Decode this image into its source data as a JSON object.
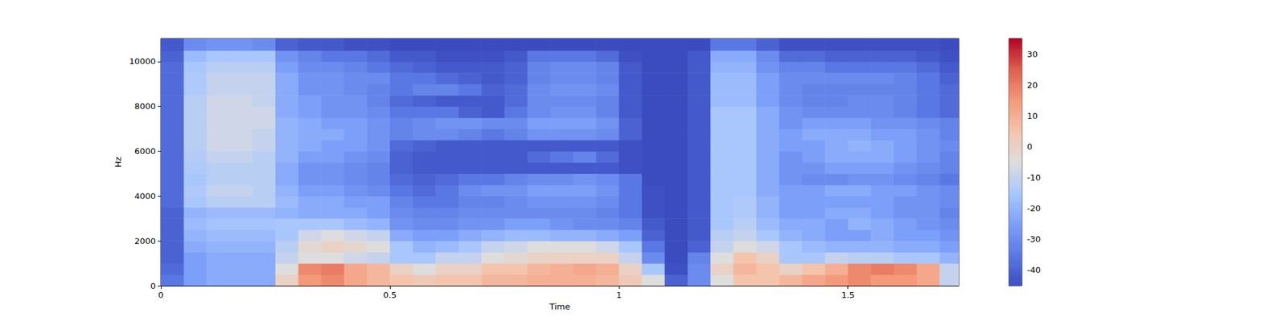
{
  "chart_data": {
    "type": "heatmap",
    "x_label": "Time",
    "y_label": "Hz",
    "xlim": [
      0,
      1.742
    ],
    "xticks": [
      0,
      0.5,
      1,
      1.5
    ],
    "ylim": [
      0,
      11025
    ],
    "yticks": [
      0,
      2000,
      4000,
      6000,
      8000,
      10000
    ],
    "x": [
      0,
      0.05,
      0.1,
      0.15,
      0.2,
      0.25,
      0.3,
      0.35,
      0.4,
      0.45,
      0.5,
      0.55,
      0.6,
      0.65,
      0.7,
      0.75,
      0.8,
      0.85,
      0.9,
      0.95,
      1.0,
      1.05,
      1.1,
      1.15,
      1.2,
      1.25,
      1.3,
      1.35,
      1.4,
      1.45,
      1.5,
      1.55,
      1.6,
      1.65,
      1.7
    ],
    "y": [
      0,
      500,
      1000,
      1500,
      2000,
      2500,
      3000,
      3500,
      4000,
      4500,
      5000,
      5500,
      6000,
      6500,
      7000,
      7500,
      8000,
      8500,
      9000,
      9500,
      10000,
      10500
    ],
    "values": [
      [
        -35,
        -25,
        -22,
        -22,
        -22,
        0,
        15,
        18,
        12,
        8,
        5,
        3,
        5,
        5,
        8,
        8,
        10,
        10,
        10,
        8,
        3,
        -5,
        -40,
        -30,
        -5,
        5,
        5,
        8,
        12,
        15,
        18,
        15,
        15,
        12,
        -10
      ],
      [
        -38,
        -25,
        -22,
        -22,
        -22,
        -5,
        18,
        20,
        12,
        8,
        0,
        -5,
        0,
        0,
        5,
        5,
        8,
        10,
        12,
        10,
        0,
        -15,
        -44,
        -30,
        0,
        8,
        5,
        0,
        5,
        10,
        18,
        20,
        18,
        12,
        -10
      ],
      [
        -40,
        -25,
        -22,
        -22,
        -22,
        -10,
        -5,
        -5,
        -8,
        -10,
        -15,
        -15,
        -10,
        -10,
        -5,
        -3,
        0,
        0,
        0,
        0,
        -10,
        -30,
        -45,
        -32,
        -5,
        5,
        0,
        -15,
        -15,
        -10,
        -12,
        -12,
        -15,
        -15,
        -20
      ],
      [
        -40,
        -22,
        -20,
        -20,
        -20,
        -12,
        -3,
        0,
        -2,
        -5,
        -15,
        -20,
        -18,
        -15,
        -10,
        -8,
        -5,
        -5,
        -5,
        -8,
        -15,
        -35,
        -45,
        -40,
        -10,
        -5,
        -8,
        -15,
        -18,
        -20,
        -20,
        -20,
        -22,
        -22,
        -25
      ],
      [
        -40,
        -20,
        -18,
        -18,
        -18,
        -15,
        -8,
        -5,
        -8,
        -10,
        -22,
        -25,
        -25,
        -22,
        -20,
        -18,
        -18,
        -20,
        -20,
        -22,
        -25,
        -40,
        -45,
        -42,
        -12,
        -10,
        -15,
        -20,
        -22,
        -25,
        -25,
        -22,
        -25,
        -25,
        -28
      ],
      [
        -40,
        -18,
        -16,
        -16,
        -16,
        -15,
        -15,
        -15,
        -18,
        -20,
        -28,
        -30,
        -30,
        -28,
        -28,
        -25,
        -25,
        -28,
        -30,
        -30,
        -32,
        -42,
        -45,
        -42,
        -15,
        -12,
        -18,
        -22,
        -22,
        -25,
        -20,
        -22,
        -25,
        -28,
        -30
      ],
      [
        -40,
        -20,
        -18,
        -18,
        -18,
        -20,
        -22,
        -22,
        -22,
        -25,
        -30,
        -32,
        -32,
        -30,
        -30,
        -30,
        -30,
        -30,
        -30,
        -32,
        -35,
        -44,
        -45,
        -42,
        -15,
        -14,
        -20,
        -25,
        -25,
        -22,
        -22,
        -25,
        -28,
        -28,
        -32
      ],
      [
        -38,
        -15,
        -12,
        -12,
        -12,
        -18,
        -22,
        -22,
        -25,
        -25,
        -32,
        -35,
        -35,
        -32,
        -32,
        -30,
        -28,
        -28,
        -28,
        -30,
        -35,
        -44,
        -45,
        -42,
        -15,
        -14,
        -20,
        -25,
        -25,
        -25,
        -25,
        -25,
        -28,
        -28,
        -30
      ],
      [
        -38,
        -14,
        -10,
        -10,
        -12,
        -20,
        -25,
        -25,
        -28,
        -30,
        -35,
        -38,
        -35,
        -30,
        -28,
        -28,
        -25,
        -25,
        -25,
        -28,
        -35,
        -44,
        -45,
        -42,
        -15,
        -15,
        -22,
        -25,
        -25,
        -22,
        -22,
        -25,
        -25,
        -28,
        -30
      ],
      [
        -38,
        -15,
        -12,
        -12,
        -12,
        -22,
        -28,
        -28,
        -30,
        -32,
        -38,
        -40,
        -38,
        -35,
        -35,
        -32,
        -30,
        -30,
        -28,
        -30,
        -35,
        -45,
        -45,
        -42,
        -15,
        -15,
        -22,
        -28,
        -30,
        -30,
        -28,
        -28,
        -30,
        -32,
        -35
      ],
      [
        -38,
        -14,
        -12,
        -12,
        -12,
        -22,
        -28,
        -28,
        -30,
        -32,
        -40,
        -42,
        -42,
        -42,
        -42,
        -42,
        -42,
        -42,
        -42,
        -42,
        -44,
        -45,
        -45,
        -42,
        -15,
        -15,
        -22,
        -28,
        -28,
        -25,
        -25,
        -25,
        -28,
        -30,
        -32
      ],
      [
        -38,
        -13,
        -10,
        -10,
        -12,
        -20,
        -25,
        -25,
        -28,
        -30,
        -40,
        -42,
        -42,
        -42,
        -42,
        -42,
        -38,
        -35,
        -32,
        -38,
        -44,
        -45,
        -45,
        -42,
        -15,
        -15,
        -22,
        -28,
        -25,
        -22,
        -22,
        -22,
        -25,
        -28,
        -32
      ],
      [
        -38,
        -12,
        -8,
        -8,
        -10,
        -20,
        -22,
        -25,
        -25,
        -28,
        -38,
        -40,
        -42,
        -42,
        -42,
        -42,
        -42,
        -42,
        -42,
        -42,
        -44,
        -45,
        -45,
        -42,
        -15,
        -15,
        -22,
        -25,
        -25,
        -22,
        -20,
        -22,
        -25,
        -28,
        -30
      ],
      [
        -38,
        -12,
        -8,
        -8,
        -10,
        -20,
        -22,
        -22,
        -25,
        -28,
        -32,
        -30,
        -30,
        -32,
        -35,
        -32,
        -28,
        -28,
        -28,
        -30,
        -40,
        -45,
        -45,
        -42,
        -15,
        -15,
        -22,
        -25,
        -22,
        -22,
        -22,
        -25,
        -25,
        -28,
        -32
      ],
      [
        -38,
        -12,
        -8,
        -8,
        -8,
        -20,
        -22,
        -25,
        -25,
        -28,
        -32,
        -30,
        -28,
        -28,
        -30,
        -30,
        -25,
        -25,
        -25,
        -28,
        -40,
        -45,
        -45,
        -42,
        -15,
        -15,
        -22,
        -28,
        -25,
        -25,
        -25,
        -28,
        -28,
        -30,
        -32
      ],
      [
        -38,
        -12,
        -8,
        -8,
        -8,
        -22,
        -25,
        -28,
        -28,
        -30,
        -35,
        -35,
        -35,
        -40,
        -42,
        -35,
        -30,
        -28,
        -28,
        -32,
        -42,
        -45,
        -45,
        -42,
        -15,
        -15,
        -22,
        -28,
        -30,
        -30,
        -30,
        -30,
        -32,
        -35,
        -38
      ],
      [
        -38,
        -12,
        -8,
        -8,
        -10,
        -22,
        -25,
        -28,
        -28,
        -32,
        -38,
        -40,
        -42,
        -42,
        -42,
        -38,
        -30,
        -30,
        -30,
        -32,
        -42,
        -45,
        -45,
        -42,
        -18,
        -18,
        -25,
        -30,
        -32,
        -32,
        -30,
        -30,
        -32,
        -35,
        -38
      ],
      [
        -38,
        -14,
        -10,
        -10,
        -10,
        -22,
        -28,
        -28,
        -30,
        -32,
        -35,
        -32,
        -32,
        -35,
        -40,
        -38,
        -30,
        -28,
        -28,
        -30,
        -42,
        -45,
        -45,
        -42,
        -18,
        -18,
        -25,
        -30,
        -32,
        -32,
        -32,
        -32,
        -32,
        -35,
        -38
      ],
      [
        -38,
        -14,
        -10,
        -10,
        -10,
        -22,
        -28,
        -28,
        -30,
        -30,
        -35,
        -35,
        -38,
        -40,
        -42,
        -40,
        -32,
        -30,
        -30,
        -32,
        -42,
        -45,
        -45,
        -42,
        -18,
        -18,
        -25,
        -30,
        -30,
        -30,
        -30,
        -30,
        -32,
        -35,
        -40
      ],
      [
        -38,
        -15,
        -12,
        -12,
        -12,
        -25,
        -30,
        -30,
        -32,
        -35,
        -38,
        -40,
        -42,
        -42,
        -42,
        -40,
        -32,
        -30,
        -30,
        -32,
        -42,
        -45,
        -45,
        -42,
        -20,
        -20,
        -28,
        -32,
        -32,
        -35,
        -35,
        -35,
        -35,
        -38,
        -42
      ],
      [
        -40,
        -18,
        -15,
        -15,
        -15,
        -28,
        -32,
        -35,
        -35,
        -38,
        -42,
        -42,
        -44,
        -44,
        -44,
        -42,
        -35,
        -35,
        -35,
        -38,
        -44,
        -45,
        -45,
        -42,
        -22,
        -22,
        -30,
        -38,
        -38,
        -40,
        -40,
        -40,
        -40,
        -42,
        -44
      ],
      [
        -42,
        -30,
        -28,
        -28,
        -30,
        -40,
        -42,
        -42,
        -44,
        -44,
        -45,
        -45,
        -45,
        -45,
        -45,
        -45,
        -45,
        -45,
        -45,
        -45,
        -45,
        -45,
        -45,
        -45,
        -35,
        -35,
        -40,
        -44,
        -44,
        -44,
        -44,
        -44,
        -44,
        -44,
        -45
      ]
    ],
    "colorbar": {
      "range": [
        -45,
        35
      ],
      "ticks": [
        -40,
        -30,
        -20,
        -10,
        0,
        10,
        20,
        30
      ]
    }
  }
}
